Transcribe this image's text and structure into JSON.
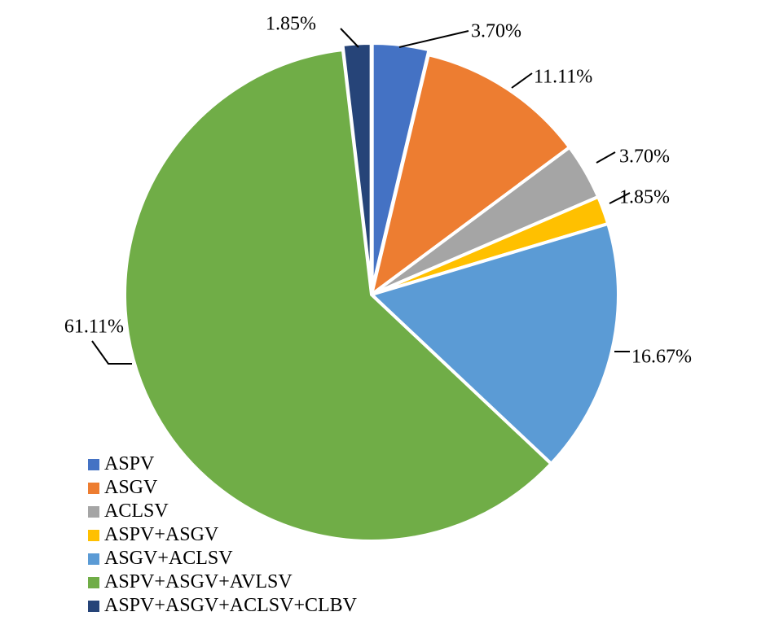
{
  "chart_data": {
    "type": "pie",
    "title": "",
    "legend_position": "bottom-left",
    "slices": [
      {
        "name": "ASPV",
        "value": 3.7,
        "label": "3.70%",
        "color": "#4472C4"
      },
      {
        "name": "ASGV",
        "value": 11.11,
        "label": "11.11%",
        "color": "#ED7D31"
      },
      {
        "name": "ACLSV",
        "value": 3.7,
        "label": "3.70%",
        "color": "#A5A5A5"
      },
      {
        "name": "ASPV+ASGV",
        "value": 1.85,
        "label": "1.85%",
        "color": "#FFC000"
      },
      {
        "name": "ASGV+ACLSV",
        "value": 16.67,
        "label": "16.67%",
        "color": "#5B9BD5"
      },
      {
        "name": "ASPV+ASGV+AVLSV",
        "value": 61.11,
        "label": "61.11%",
        "color": "#70AD47"
      },
      {
        "name": "ASPV+ASGV+ACLSV+CLBV",
        "value": 1.85,
        "label": "1.85%",
        "color": "#264478"
      }
    ]
  }
}
